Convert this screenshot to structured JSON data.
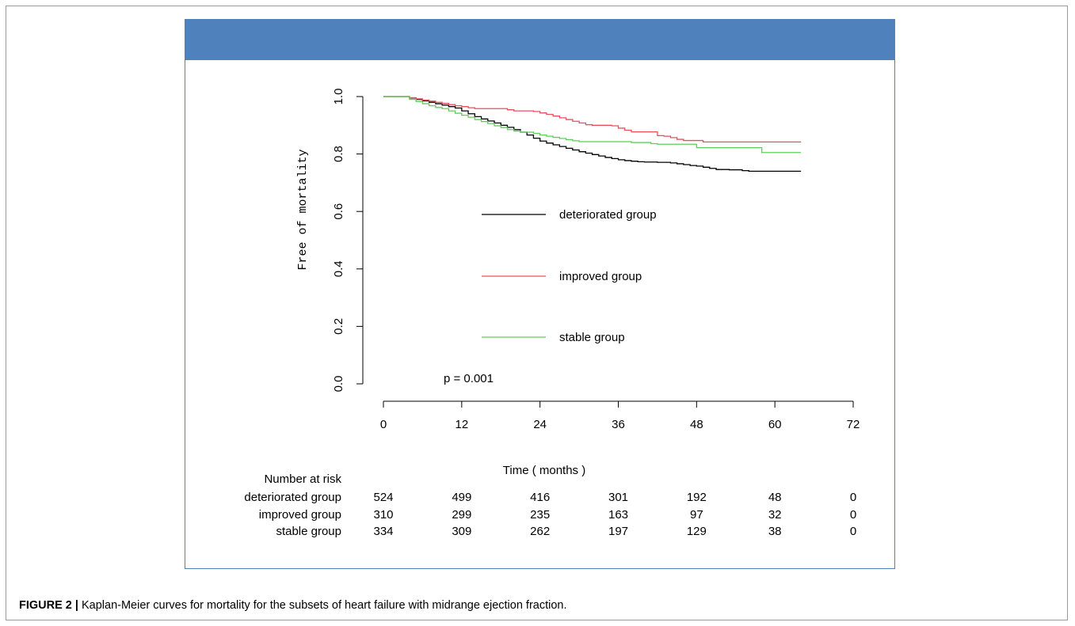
{
  "caption": {
    "label": "FIGURE 2 |",
    "text": " Kaplan-Meier curves for mortality for the subsets of heart failure with midrange ejection fraction."
  },
  "chart_data": {
    "type": "line",
    "subtype": "kaplan-meier-step",
    "title": "",
    "xlabel": "Time ( months )",
    "ylabel": "Free of mortality",
    "xlim": [
      0,
      72
    ],
    "ylim": [
      0,
      1.0
    ],
    "x_ticks": [
      0,
      12,
      24,
      36,
      48,
      60,
      72
    ],
    "y_ticks": [
      0.0,
      0.2,
      0.4,
      0.6,
      0.8,
      1.0
    ],
    "grid": false,
    "legend_position": "center",
    "annotation": "p = 0.001",
    "series": [
      {
        "name": "deteriorated group",
        "color": "#000000",
        "points": [
          [
            0,
            1.0
          ],
          [
            3,
            1.0
          ],
          [
            4,
            0.995
          ],
          [
            5,
            0.99
          ],
          [
            6,
            0.985
          ],
          [
            7,
            0.98
          ],
          [
            8,
            0.975
          ],
          [
            9,
            0.97
          ],
          [
            10,
            0.965
          ],
          [
            11,
            0.96
          ],
          [
            12,
            0.95
          ],
          [
            13,
            0.94
          ],
          [
            14,
            0.93
          ],
          [
            15,
            0.922
          ],
          [
            16,
            0.915
          ],
          [
            17,
            0.908
          ],
          [
            18,
            0.9
          ],
          [
            19,
            0.893
          ],
          [
            20,
            0.885
          ],
          [
            21,
            0.876
          ],
          [
            22,
            0.866
          ],
          [
            23,
            0.855
          ],
          [
            24,
            0.845
          ],
          [
            25,
            0.838
          ],
          [
            26,
            0.832
          ],
          [
            27,
            0.826
          ],
          [
            28,
            0.82
          ],
          [
            29,
            0.814
          ],
          [
            30,
            0.808
          ],
          [
            31,
            0.803
          ],
          [
            32,
            0.798
          ],
          [
            33,
            0.793
          ],
          [
            34,
            0.788
          ],
          [
            35,
            0.784
          ],
          [
            36,
            0.78
          ],
          [
            37,
            0.777
          ],
          [
            38,
            0.775
          ],
          [
            39,
            0.773
          ],
          [
            40,
            0.772
          ],
          [
            42,
            0.771
          ],
          [
            44,
            0.769
          ],
          [
            45,
            0.766
          ],
          [
            46,
            0.763
          ],
          [
            47,
            0.76
          ],
          [
            48,
            0.758
          ],
          [
            49,
            0.754
          ],
          [
            50,
            0.75
          ],
          [
            51,
            0.746
          ],
          [
            53,
            0.745
          ],
          [
            55,
            0.742
          ],
          [
            56,
            0.74
          ],
          [
            64,
            0.74
          ]
        ]
      },
      {
        "name": "improved group",
        "color": "#e8505b",
        "points": [
          [
            0,
            1.0
          ],
          [
            3,
            1.0
          ],
          [
            4,
            0.996
          ],
          [
            5,
            0.992
          ],
          [
            6,
            0.988
          ],
          [
            7,
            0.984
          ],
          [
            8,
            0.98
          ],
          [
            9,
            0.976
          ],
          [
            10,
            0.972
          ],
          [
            11,
            0.968
          ],
          [
            12,
            0.965
          ],
          [
            13,
            0.961
          ],
          [
            14,
            0.958
          ],
          [
            18,
            0.958
          ],
          [
            19,
            0.954
          ],
          [
            20,
            0.95
          ],
          [
            23,
            0.948
          ],
          [
            24,
            0.943
          ],
          [
            25,
            0.938
          ],
          [
            26,
            0.932
          ],
          [
            27,
            0.926
          ],
          [
            28,
            0.92
          ],
          [
            29,
            0.914
          ],
          [
            30,
            0.908
          ],
          [
            31,
            0.902
          ],
          [
            32,
            0.9
          ],
          [
            35,
            0.898
          ],
          [
            36,
            0.89
          ],
          [
            37,
            0.883
          ],
          [
            38,
            0.877
          ],
          [
            41,
            0.877
          ],
          [
            42,
            0.864
          ],
          [
            43,
            0.862
          ],
          [
            44,
            0.857
          ],
          [
            45,
            0.851
          ],
          [
            46,
            0.847
          ],
          [
            48,
            0.847
          ],
          [
            49,
            0.842
          ],
          [
            64,
            0.842
          ]
        ]
      },
      {
        "name": "stable group",
        "color": "#5ecf5a",
        "points": [
          [
            0,
            1.0
          ],
          [
            3,
            1.0
          ],
          [
            4,
            0.99
          ],
          [
            5,
            0.983
          ],
          [
            6,
            0.975
          ],
          [
            7,
            0.968
          ],
          [
            8,
            0.962
          ],
          [
            9,
            0.958
          ],
          [
            10,
            0.95
          ],
          [
            11,
            0.942
          ],
          [
            12,
            0.935
          ],
          [
            13,
            0.928
          ],
          [
            14,
            0.92
          ],
          [
            15,
            0.913
          ],
          [
            16,
            0.906
          ],
          [
            17,
            0.898
          ],
          [
            18,
            0.892
          ],
          [
            19,
            0.885
          ],
          [
            20,
            0.88
          ],
          [
            21,
            0.876
          ],
          [
            23,
            0.872
          ],
          [
            24,
            0.866
          ],
          [
            25,
            0.862
          ],
          [
            26,
            0.858
          ],
          [
            27,
            0.854
          ],
          [
            28,
            0.85
          ],
          [
            29,
            0.846
          ],
          [
            30,
            0.843
          ],
          [
            36,
            0.843
          ],
          [
            38,
            0.84
          ],
          [
            41,
            0.836
          ],
          [
            42,
            0.834
          ],
          [
            47,
            0.834
          ],
          [
            48,
            0.822
          ],
          [
            57,
            0.822
          ],
          [
            58,
            0.805
          ],
          [
            64,
            0.805
          ]
        ]
      }
    ],
    "risk_table": {
      "title": "Number at risk",
      "times": [
        0,
        12,
        24,
        36,
        48,
        60,
        72
      ],
      "rows": [
        {
          "name": "deteriorated group",
          "counts": [
            "524",
            "499",
            "416",
            "301",
            "192",
            "48",
            "0"
          ]
        },
        {
          "name": "improved group",
          "counts": [
            "310",
            "299",
            "235",
            "163",
            "97",
            "32",
            "0"
          ]
        },
        {
          "name": "stable group",
          "counts": [
            "334",
            "309",
            "262",
            "197",
            "129",
            "38",
            "0"
          ]
        }
      ]
    }
  }
}
